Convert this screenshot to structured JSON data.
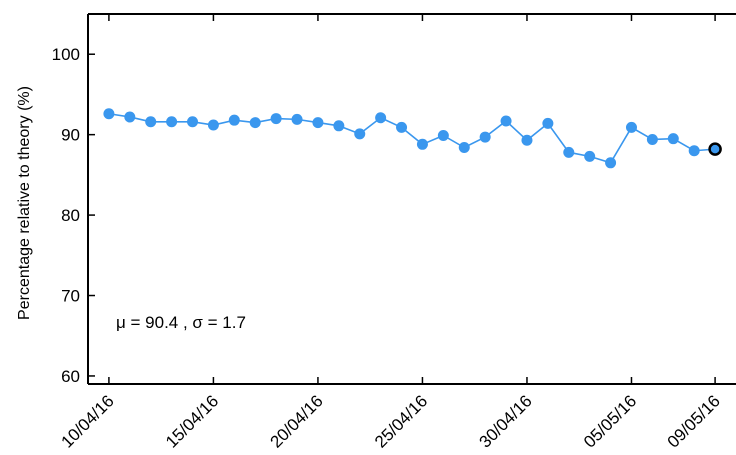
{
  "chart_data": {
    "type": "line",
    "ylabel": "Percentage relative to theory (%)",
    "ylim": [
      59,
      105
    ],
    "yticks": [
      60,
      70,
      80,
      90,
      100
    ],
    "xlim": [
      "2016-04-09",
      "2016-05-10"
    ],
    "xticks": [
      "10/04/16",
      "15/04/16",
      "20/04/16",
      "25/04/16",
      "30/04/16",
      "05/05/16",
      "09/05/16"
    ],
    "tick_dates": [
      "2016-04-10",
      "2016-04-15",
      "2016-04-20",
      "2016-04-25",
      "2016-04-30",
      "2016-05-05",
      "2016-05-09"
    ],
    "annotation": "μ = 90.4 , σ = 1.7",
    "series": [
      {
        "color": "#3a97ee",
        "x": [
          "2016-04-10",
          "2016-04-11",
          "2016-04-12",
          "2016-04-13",
          "2016-04-14",
          "2016-04-15",
          "2016-04-16",
          "2016-04-17",
          "2016-04-18",
          "2016-04-19",
          "2016-04-20",
          "2016-04-21",
          "2016-04-22",
          "2016-04-23",
          "2016-04-24",
          "2016-04-25",
          "2016-04-26",
          "2016-04-27",
          "2016-04-28",
          "2016-04-29",
          "2016-04-30",
          "2016-05-01",
          "2016-05-02",
          "2016-05-03",
          "2016-05-04",
          "2016-05-05",
          "2016-05-06",
          "2016-05-07",
          "2016-05-08",
          "2016-05-09"
        ],
        "values": [
          92.6,
          92.2,
          91.6,
          91.6,
          91.6,
          91.2,
          91.8,
          91.5,
          92.0,
          91.9,
          91.5,
          91.1,
          90.1,
          92.1,
          90.9,
          88.8,
          89.9,
          88.4,
          89.7,
          91.7,
          89.3,
          91.4,
          87.8,
          87.3,
          86.5,
          90.9,
          89.4,
          89.5,
          88.0,
          88.2
        ]
      }
    ],
    "highlight_last": true
  }
}
